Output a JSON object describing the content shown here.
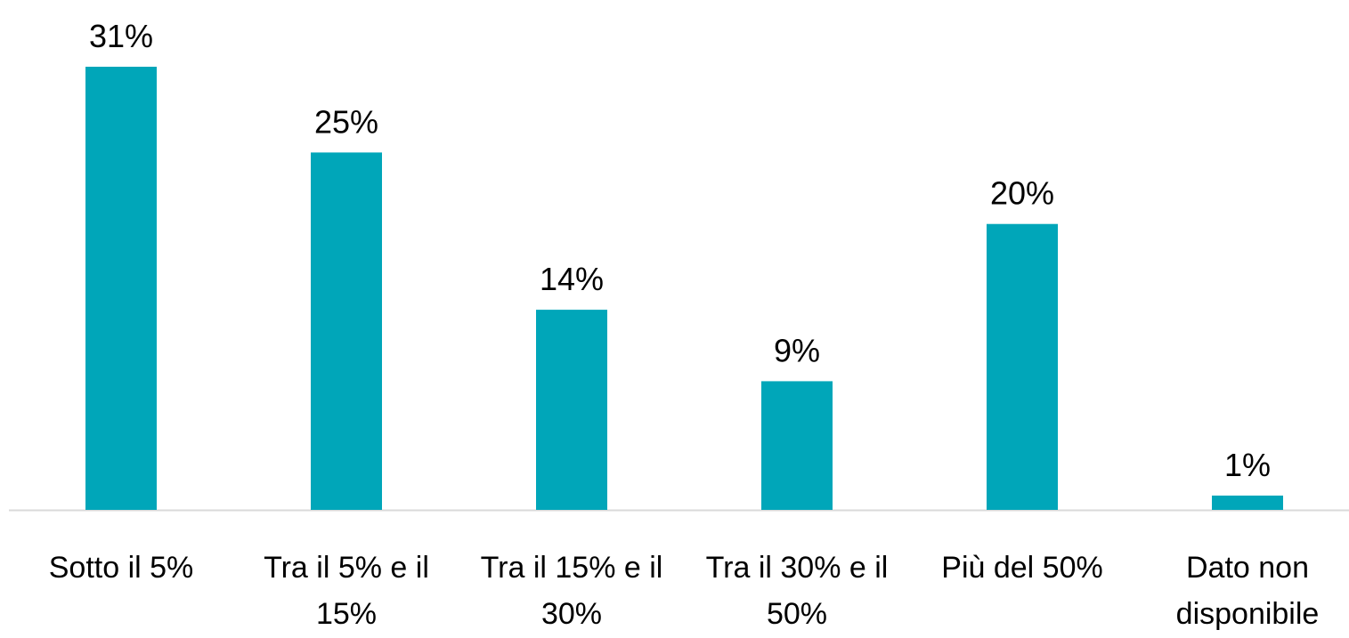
{
  "chart_data": {
    "type": "bar",
    "categories": [
      "Sotto il 5%",
      "Tra il 5% e il 15%",
      "Tra il 15% e il 30%",
      "Tra il 30% e il 50%",
      "Più del 50%",
      "Dato non disponibile"
    ],
    "values": [
      31,
      25,
      14,
      9,
      20,
      1
    ],
    "value_labels": [
      "31%",
      "25%",
      "14%",
      "9%",
      "20%",
      "1%"
    ],
    "color": "#00a6b9"
  }
}
